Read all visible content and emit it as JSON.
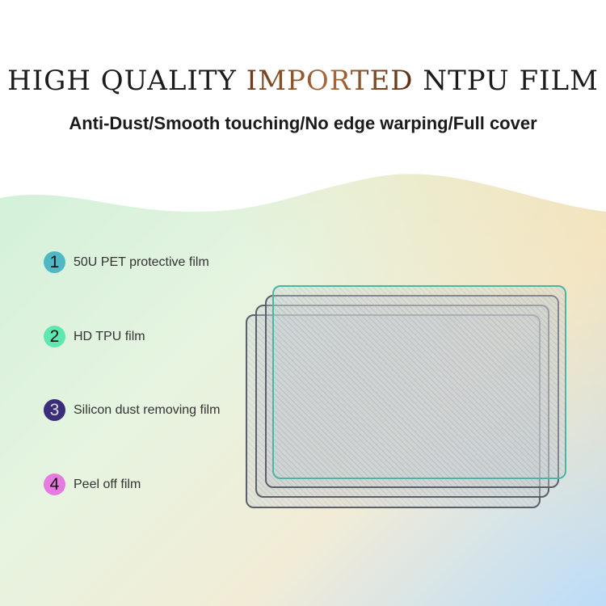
{
  "title": {
    "part1": "HIGH QUALITY ",
    "accent": "IMPORTED",
    "part2": " NTPU FILM"
  },
  "subtitle": "Anti-Dust/Smooth touching/No edge warping/Full cover",
  "layers": [
    {
      "number": "1",
      "label": "50U PET protective film",
      "color": "#4fb8c4"
    },
    {
      "number": "2",
      "label": "HD TPU film",
      "color": "#5ee8b0"
    },
    {
      "number": "3",
      "label": "Silicon dust removing film",
      "color": "#3a2e78",
      "text_color": "#ddd"
    },
    {
      "number": "4",
      "label": "Peel off film",
      "color": "#e77ae0"
    }
  ],
  "colors": {
    "film_top_border": "#4bb5a8",
    "film_border": "#5a5f6a"
  }
}
